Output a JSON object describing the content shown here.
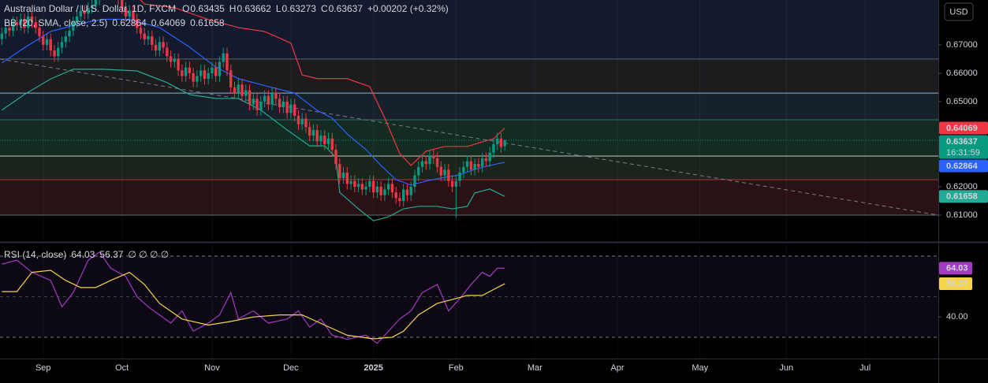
{
  "chart_data": [
    {
      "type": "candlestick",
      "title": "Australian Dollar / U.S. Dollar, 1D, FXCM",
      "ohlc_legend": [
        {
          "label": "O",
          "value": 0.63435
        },
        {
          "label": "H",
          "value": 0.63662
        },
        {
          "label": "L",
          "value": 0.63273
        },
        {
          "label": "C",
          "value": 0.63637
        }
      ],
      "change": "+0.00202 (+0.32%)",
      "currency": "USD",
      "countdown": "16:31:59",
      "xlim": [
        -0.5,
        249.5
      ],
      "xticks": [
        {
          "value": 11,
          "label": "Sep"
        },
        {
          "value": 32,
          "label": "Oct"
        },
        {
          "value": 56,
          "label": "Nov"
        },
        {
          "value": 77,
          "label": "Dec"
        },
        {
          "value": 99,
          "label": "2025"
        },
        {
          "value": 121,
          "label": "Feb"
        },
        {
          "value": 142,
          "label": "Mar"
        },
        {
          "value": 164,
          "label": "Apr"
        },
        {
          "value": 186,
          "label": "May"
        },
        {
          "value": 209,
          "label": "Jun"
        },
        {
          "value": 230,
          "label": "Jul"
        }
      ],
      "ylim": [
        0.6011,
        0.6858
      ],
      "yticks": [
        {
          "value": 0.61,
          "label": "0.61000"
        },
        {
          "value": 0.62,
          "label": "0.62000"
        },
        {
          "value": 0.65,
          "label": "0.65000"
        },
        {
          "value": 0.66,
          "label": "0.66000"
        },
        {
          "value": 0.67,
          "label": "0.67000"
        }
      ],
      "up_color": "#089981",
      "down_color": "#f23645",
      "open": [
        0.672,
        0.674,
        0.676,
        0.675,
        0.678,
        0.677,
        0.679,
        0.676,
        0.68,
        0.678,
        0.676,
        0.673,
        0.67,
        0.672,
        0.668,
        0.666,
        0.669,
        0.671,
        0.673,
        0.675,
        0.678,
        0.68,
        0.682,
        0.681,
        0.683,
        0.684,
        0.686,
        0.688,
        0.69,
        0.689,
        0.692,
        0.69,
        0.686,
        0.683,
        0.68,
        0.682,
        0.679,
        0.676,
        0.674,
        0.672,
        0.673,
        0.67,
        0.668,
        0.671,
        0.669,
        0.666,
        0.664,
        0.665,
        0.661,
        0.659,
        0.662,
        0.66,
        0.657,
        0.659,
        0.661,
        0.658,
        0.66,
        0.662,
        0.659,
        0.664,
        0.667,
        0.661,
        0.655,
        0.653,
        0.656,
        0.652,
        0.654,
        0.649,
        0.651,
        0.647,
        0.65,
        0.652,
        0.649,
        0.653,
        0.651,
        0.648,
        0.65,
        0.646,
        0.649,
        0.645,
        0.642,
        0.644,
        0.641,
        0.638,
        0.64,
        0.636,
        0.638,
        0.635,
        0.637,
        0.633,
        0.628,
        0.623,
        0.625,
        0.621,
        0.622,
        0.62,
        0.621,
        0.619,
        0.62,
        0.622,
        0.618,
        0.62,
        0.617,
        0.619,
        0.621,
        0.618,
        0.616,
        0.615,
        0.619,
        0.617,
        0.62,
        0.624,
        0.627,
        0.629,
        0.628,
        0.631,
        0.63,
        0.627,
        0.624,
        0.626,
        0.622,
        0.62,
        0.622,
        0.625,
        0.627,
        0.629,
        0.626,
        0.628,
        0.627,
        0.63,
        0.629,
        0.632,
        0.635,
        0.637,
        0.63435
      ],
      "high": [
        0.676,
        0.678,
        0.678,
        0.68,
        0.68,
        0.681,
        0.681,
        0.682,
        0.682,
        0.68,
        0.678,
        0.675,
        0.674,
        0.674,
        0.67,
        0.671,
        0.673,
        0.675,
        0.677,
        0.68,
        0.682,
        0.684,
        0.684,
        0.685,
        0.686,
        0.688,
        0.69,
        0.692,
        0.692,
        0.694,
        0.694,
        0.692,
        0.688,
        0.685,
        0.684,
        0.684,
        0.681,
        0.678,
        0.676,
        0.675,
        0.675,
        0.672,
        0.673,
        0.673,
        0.671,
        0.668,
        0.667,
        0.667,
        0.663,
        0.664,
        0.664,
        0.662,
        0.661,
        0.663,
        0.663,
        0.662,
        0.664,
        0.664,
        0.666,
        0.669,
        0.669,
        0.663,
        0.657,
        0.658,
        0.658,
        0.656,
        0.656,
        0.653,
        0.653,
        0.652,
        0.654,
        0.654,
        0.655,
        0.655,
        0.653,
        0.652,
        0.652,
        0.651,
        0.651,
        0.647,
        0.646,
        0.646,
        0.643,
        0.642,
        0.642,
        0.64,
        0.64,
        0.639,
        0.639,
        0.635,
        0.63,
        0.627,
        0.627,
        0.624,
        0.624,
        0.623,
        0.623,
        0.622,
        0.624,
        0.624,
        0.622,
        0.622,
        0.621,
        0.623,
        0.623,
        0.62,
        0.618,
        0.621,
        0.621,
        0.622,
        0.626,
        0.629,
        0.631,
        0.631,
        0.633,
        0.633,
        0.632,
        0.629,
        0.628,
        0.628,
        0.624,
        0.624,
        0.627,
        0.629,
        0.631,
        0.631,
        0.63,
        0.63,
        0.632,
        0.632,
        0.634,
        0.637,
        0.639,
        0.639,
        0.63662
      ],
      "low": [
        0.67,
        0.672,
        0.673,
        0.673,
        0.675,
        0.675,
        0.674,
        0.674,
        0.676,
        0.674,
        0.671,
        0.668,
        0.668,
        0.666,
        0.664,
        0.664,
        0.667,
        0.669,
        0.671,
        0.673,
        0.676,
        0.678,
        0.679,
        0.679,
        0.681,
        0.682,
        0.684,
        0.686,
        0.687,
        0.687,
        0.688,
        0.684,
        0.681,
        0.678,
        0.678,
        0.677,
        0.674,
        0.672,
        0.67,
        0.67,
        0.668,
        0.666,
        0.666,
        0.667,
        0.664,
        0.662,
        0.662,
        0.659,
        0.657,
        0.657,
        0.658,
        0.655,
        0.655,
        0.657,
        0.656,
        0.656,
        0.658,
        0.657,
        0.657,
        0.662,
        0.659,
        0.653,
        0.651,
        0.651,
        0.65,
        0.65,
        0.647,
        0.647,
        0.645,
        0.645,
        0.648,
        0.647,
        0.647,
        0.649,
        0.646,
        0.646,
        0.644,
        0.644,
        0.643,
        0.64,
        0.64,
        0.639,
        0.636,
        0.636,
        0.634,
        0.634,
        0.633,
        0.633,
        0.631,
        0.626,
        0.621,
        0.621,
        0.619,
        0.619,
        0.618,
        0.618,
        0.617,
        0.617,
        0.618,
        0.616,
        0.616,
        0.615,
        0.615,
        0.617,
        0.616,
        0.614,
        0.613,
        0.613,
        0.615,
        0.615,
        0.618,
        0.622,
        0.625,
        0.626,
        0.626,
        0.628,
        0.625,
        0.622,
        0.622,
        0.62,
        0.618,
        0.609,
        0.62,
        0.623,
        0.625,
        0.624,
        0.624,
        0.625,
        0.625,
        0.627,
        0.627,
        0.63,
        0.633,
        0.632,
        0.63273
      ],
      "close": [
        0.674,
        0.676,
        0.675,
        0.678,
        0.677,
        0.679,
        0.676,
        0.68,
        0.678,
        0.676,
        0.673,
        0.67,
        0.672,
        0.668,
        0.666,
        0.669,
        0.671,
        0.673,
        0.675,
        0.678,
        0.68,
        0.682,
        0.681,
        0.683,
        0.684,
        0.686,
        0.688,
        0.69,
        0.689,
        0.692,
        0.69,
        0.686,
        0.683,
        0.68,
        0.682,
        0.679,
        0.676,
        0.674,
        0.672,
        0.673,
        0.67,
        0.668,
        0.671,
        0.669,
        0.666,
        0.664,
        0.665,
        0.661,
        0.659,
        0.662,
        0.66,
        0.657,
        0.659,
        0.661,
        0.658,
        0.66,
        0.662,
        0.659,
        0.664,
        0.667,
        0.661,
        0.655,
        0.653,
        0.656,
        0.652,
        0.654,
        0.649,
        0.651,
        0.647,
        0.65,
        0.652,
        0.649,
        0.653,
        0.651,
        0.648,
        0.65,
        0.646,
        0.649,
        0.645,
        0.642,
        0.644,
        0.641,
        0.638,
        0.64,
        0.636,
        0.638,
        0.635,
        0.637,
        0.633,
        0.628,
        0.623,
        0.625,
        0.621,
        0.622,
        0.62,
        0.621,
        0.619,
        0.62,
        0.622,
        0.618,
        0.62,
        0.617,
        0.619,
        0.621,
        0.618,
        0.616,
        0.615,
        0.619,
        0.617,
        0.62,
        0.624,
        0.627,
        0.629,
        0.628,
        0.631,
        0.63,
        0.627,
        0.624,
        0.626,
        0.622,
        0.62,
        0.622,
        0.625,
        0.627,
        0.629,
        0.626,
        0.628,
        0.627,
        0.63,
        0.629,
        0.632,
        0.635,
        0.637,
        0.634,
        0.63637
      ],
      "overlays": {
        "name": "BB (20, SMA, close, 2.5)",
        "series": [
          {
            "color": "#f23645",
            "x": [
              0,
              15,
              25,
              30,
              38,
              46,
              55,
              63,
              70,
              77,
              80,
              84,
              92,
              98,
              102,
              106,
              109,
              113,
              118,
              124,
              128,
              131,
              134
            ],
            "values": [
              0.688,
              0.69,
              0.696,
              0.695,
              0.6844,
              0.6831,
              0.6789,
              0.6761,
              0.6747,
              0.6706,
              0.6594,
              0.6581,
              0.6581,
              0.6553,
              0.6442,
              0.6317,
              0.6275,
              0.6325,
              0.6342,
              0.6342,
              0.6358,
              0.6369,
              0.64069
            ]
          },
          {
            "color": "#2962ff",
            "x": [
              0,
              6,
              13,
              21,
              27,
              34,
              42,
              50,
              57,
              63,
              71,
              78,
              84,
              88,
              92,
              97,
              101,
              105,
              109,
              113,
              118,
              122,
              126,
              130,
              134
            ],
            "values": [
              0.6636,
              0.669,
              0.6747,
              0.6775,
              0.679,
              0.679,
              0.6761,
              0.6692,
              0.6622,
              0.6581,
              0.6553,
              0.653,
              0.6469,
              0.6442,
              0.6386,
              0.6331,
              0.6275,
              0.6225,
              0.6206,
              0.622,
              0.6233,
              0.6242,
              0.6261,
              0.6275,
              0.62864
            ]
          },
          {
            "color": "#22ab94",
            "x": [
              0,
              6,
              13,
              19,
              27,
              36,
              44,
              50,
              57,
              63,
              69,
              76,
              82,
              86,
              89,
              90,
              95,
              99,
              103,
              107,
              111,
              116,
              120,
              124,
              126,
              130,
              134
            ],
            "values": [
              0.647,
              0.6525,
              0.658,
              0.6614,
              0.6614,
              0.6608,
              0.6567,
              0.6525,
              0.6511,
              0.6511,
              0.647,
              0.64,
              0.6344,
              0.6344,
              0.6303,
              0.618,
              0.6122,
              0.608,
              0.6094,
              0.6122,
              0.6131,
              0.6131,
              0.6122,
              0.6131,
              0.6178,
              0.6192,
              0.61658
            ]
          }
        ]
      },
      "zones": [
        {
          "from": 0.665,
          "to": 0.6858,
          "color": "#141a2e"
        },
        {
          "from": 0.653,
          "to": 0.665,
          "color": "#1c1c1f"
        },
        {
          "from": 0.6436,
          "to": 0.653,
          "color": "#17212a"
        },
        {
          "from": 0.6308,
          "to": 0.6436,
          "color": "#132b21"
        },
        {
          "from": 0.6225,
          "to": 0.6308,
          "color": "#19251b"
        },
        {
          "from": 0.61,
          "to": 0.6225,
          "color": "#2a1116"
        }
      ],
      "levels": [
        {
          "value": 0.665,
          "color": "#5d606b"
        },
        {
          "value": 0.653,
          "color": "#8fb3d9"
        },
        {
          "value": 0.6436,
          "color": "#2f6f63"
        },
        {
          "value": 0.6308,
          "color": "#c8c8c8"
        },
        {
          "value": 0.6225,
          "color": "#a8323c"
        },
        {
          "value": 0.61,
          "color": "#6a6d78"
        }
      ],
      "trendline": {
        "color": "#787b86",
        "x": [
          -0.5,
          249.5
        ],
        "values": [
          0.665,
          0.61
        ]
      }
    },
    {
      "type": "line",
      "title": "RSI (14, close)",
      "legend_extra": "∅ ∅ ∅ ∅",
      "ylim": [
        19.5,
        75.8
      ],
      "yticks": [
        {
          "value": 40,
          "label": "40.00"
        }
      ],
      "bands": [
        70,
        50,
        30
      ],
      "series": [
        {
          "color": "#a33ac2",
          "x": [
            0,
            4,
            8,
            13,
            16,
            19,
            23,
            26,
            29,
            33,
            36,
            39,
            42,
            45,
            48,
            51,
            55,
            58,
            61,
            63,
            67,
            71,
            76,
            79,
            82,
            85,
            88,
            92,
            97,
            100,
            103,
            106,
            109,
            112,
            116,
            119,
            122,
            125,
            128,
            130,
            132,
            134
          ],
          "values": [
            66,
            68,
            62,
            58,
            45,
            52,
            68,
            72,
            64,
            60,
            50,
            45,
            41,
            37,
            43,
            33,
            37,
            41,
            52,
            39,
            43,
            37,
            39,
            43,
            35,
            39,
            31,
            29,
            31,
            27,
            33,
            39,
            43,
            52,
            56,
            43,
            49,
            56,
            62,
            60,
            64,
            64.03
          ]
        },
        {
          "color": "#f5d547",
          "x": [
            0,
            4,
            8,
            13,
            17,
            21,
            25,
            29,
            34,
            38,
            42,
            48,
            55,
            61,
            67,
            74,
            80,
            86,
            92,
            99,
            104,
            107,
            111,
            116,
            120,
            124,
            128,
            132,
            134
          ],
          "values": [
            52.5,
            52.5,
            62,
            63,
            58,
            54.5,
            54.5,
            58,
            62,
            56,
            46.7,
            39,
            36,
            37.8,
            40,
            41,
            41,
            36,
            31,
            29.2,
            30,
            33,
            41,
            46.7,
            48.6,
            50.6,
            50.6,
            54.5,
            56.37
          ]
        }
      ]
    }
  ]
}
